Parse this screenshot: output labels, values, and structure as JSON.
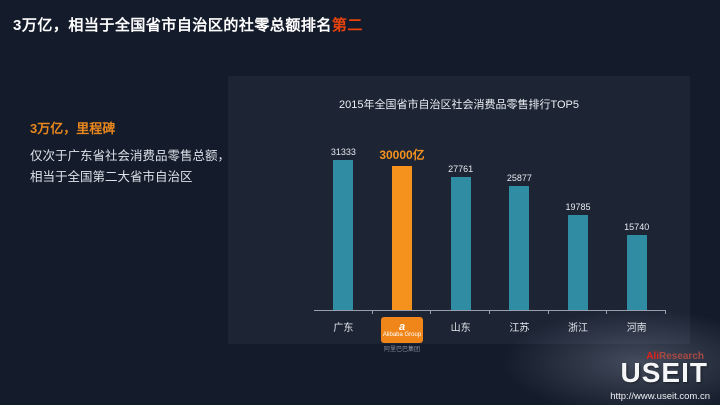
{
  "slide": {
    "title": {
      "prefix": "3万亿，相当于全国省市自治区的社零总额排名",
      "highlight": "第二"
    },
    "left_panel": {
      "heading": "3万亿，里程碑",
      "line1": "仅次于广东省社会消费品零售总额，",
      "line2": "相当于全国第二大省市自治区"
    },
    "footer": {
      "brand_ali": "Ali",
      "brand_research": "Research",
      "watermark": "USEIT",
      "url": "http://www.useit.com.cn"
    }
  },
  "chart_data": {
    "type": "bar",
    "title": "2015年全国省市自治区社会消费品零售排行TOP5",
    "categories": [
      "广东",
      "阿里巴巴",
      "山东",
      "江苏",
      "浙江",
      "河南"
    ],
    "values": [
      31333,
      30000,
      27761,
      25877,
      19785,
      15740
    ],
    "value_labels": [
      "31333",
      "30000亿",
      "27761",
      "25877",
      "19785",
      "15740"
    ],
    "highlight_index": 1,
    "logo": {
      "mark": "a",
      "text": "Alibaba Group",
      "subtext": "阿里巴巴集团"
    },
    "colors": {
      "bar": "#2f8ca3",
      "highlight": "#f5921e"
    },
    "ylim": [
      0,
      31333
    ],
    "xlabel": "",
    "ylabel": "",
    "legend": false,
    "grid": false
  }
}
